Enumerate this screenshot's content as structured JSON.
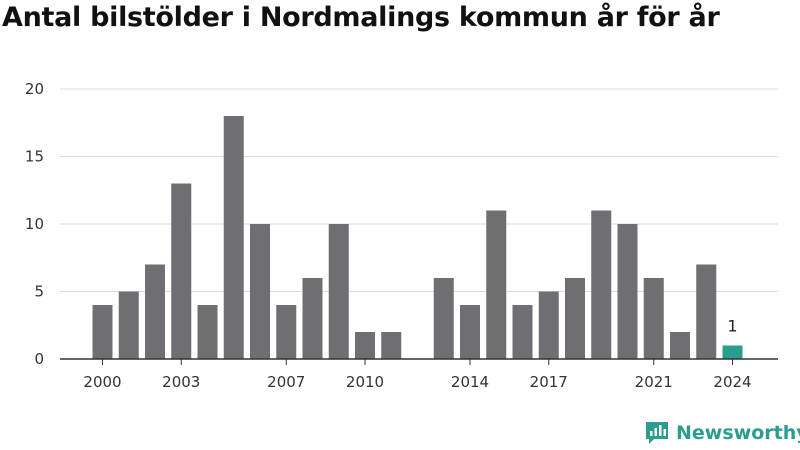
{
  "chart_data": {
    "type": "bar",
    "title": "Antal bilstölder i Nordmalings kommun år för år",
    "xlabel": "",
    "ylabel": "",
    "categories": [
      "2000",
      "2001",
      "2002",
      "2003",
      "2004",
      "2005",
      "2006",
      "2007",
      "2008",
      "2009",
      "2010",
      "2011",
      "2012",
      "2013",
      "2014",
      "2015",
      "2016",
      "2017",
      "2018",
      "2019",
      "2020",
      "2021",
      "2022",
      "2023",
      "2024"
    ],
    "values": [
      4,
      5,
      7,
      13,
      4,
      18,
      10,
      4,
      6,
      10,
      2,
      2,
      null,
      6,
      4,
      11,
      4,
      5,
      6,
      11,
      10,
      6,
      2,
      7,
      1
    ],
    "ylim": [
      0,
      20
    ],
    "yticks": [
      "0",
      "5",
      "10",
      "15",
      "20"
    ],
    "xtick_labels": [
      "2000",
      "2003",
      "2007",
      "2010",
      "2014",
      "2017",
      "2021",
      "2024"
    ],
    "highlight": {
      "category": "2024",
      "label": "1"
    },
    "colors": {
      "bar": "#6f6e73",
      "highlight": "#2a9d8f",
      "grid": "#d9d9d9",
      "axis": "#333333"
    },
    "grid": true,
    "legend": "none"
  },
  "brand": {
    "name": "Newsworthy",
    "icon": "newsworthy-logo-icon"
  }
}
